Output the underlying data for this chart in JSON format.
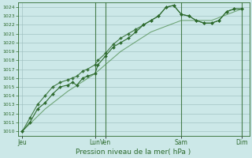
{
  "xlabel": "Pression niveau de la mer( hPa )",
  "bg_color": "#cce8e8",
  "grid_color": "#99bbbb",
  "line_color": "#2d6a2d",
  "line_color2": "#4a8a4a",
  "ylim": [
    1009.5,
    1024.5
  ],
  "yticks": [
    1010,
    1011,
    1012,
    1013,
    1014,
    1015,
    1016,
    1017,
    1018,
    1019,
    1020,
    1021,
    1022,
    1023,
    1024
  ],
  "xtick_positions": [
    0.0,
    4.8,
    5.5,
    10.5,
    14.5
  ],
  "xtick_labels": [
    "Jeu",
    "Lun",
    "Ven",
    "Sam",
    "Dim"
  ],
  "day_vlines": [
    4.8,
    5.5,
    10.5,
    14.5
  ],
  "line1_x": [
    0.0,
    0.5,
    1.0,
    1.5,
    2.0,
    2.5,
    3.0,
    3.3,
    3.6,
    4.0,
    4.3,
    4.8,
    5.0,
    5.5,
    6.0,
    6.5,
    7.0,
    7.5,
    8.0,
    8.5,
    9.0,
    9.5,
    10.0,
    10.5,
    11.0,
    11.5,
    12.0,
    12.5,
    13.0,
    13.5,
    14.0,
    14.5
  ],
  "line1_y": [
    1010.0,
    1011.0,
    1012.5,
    1013.2,
    1014.2,
    1015.0,
    1015.2,
    1015.5,
    1015.2,
    1016.0,
    1016.2,
    1016.5,
    1017.5,
    1018.5,
    1019.5,
    1020.0,
    1020.5,
    1021.2,
    1022.0,
    1022.5,
    1023.0,
    1024.0,
    1024.2,
    1023.2,
    1023.0,
    1022.5,
    1022.2,
    1022.2,
    1022.5,
    1023.5,
    1023.8,
    1023.8
  ],
  "line2_x": [
    0.0,
    0.5,
    1.0,
    1.5,
    2.0,
    2.5,
    3.0,
    3.3,
    3.6,
    4.0,
    4.3,
    4.8,
    5.0,
    5.5,
    6.0,
    6.5,
    7.0,
    7.5,
    8.0,
    8.5,
    9.0,
    9.5,
    10.0,
    10.5,
    11.0,
    11.5,
    12.0,
    12.5,
    13.0,
    13.5,
    14.0,
    14.5
  ],
  "line2_y": [
    1010.0,
    1011.5,
    1013.0,
    1014.0,
    1015.0,
    1015.5,
    1015.8,
    1016.0,
    1016.2,
    1016.8,
    1017.0,
    1017.5,
    1018.0,
    1018.8,
    1019.8,
    1020.5,
    1021.0,
    1021.5,
    1022.0,
    1022.5,
    1023.0,
    1024.0,
    1024.2,
    1023.2,
    1023.0,
    1022.5,
    1022.2,
    1022.2,
    1022.5,
    1023.5,
    1023.8,
    1023.8
  ],
  "line3_x": [
    0.0,
    1.5,
    3.0,
    4.8,
    6.5,
    8.5,
    10.5,
    12.5,
    14.5
  ],
  "line3_y": [
    1010.0,
    1012.5,
    1014.5,
    1016.5,
    1019.0,
    1021.2,
    1022.5,
    1022.5,
    1023.8
  ],
  "marker": "D",
  "markersize": 2.0,
  "linewidth": 0.8
}
